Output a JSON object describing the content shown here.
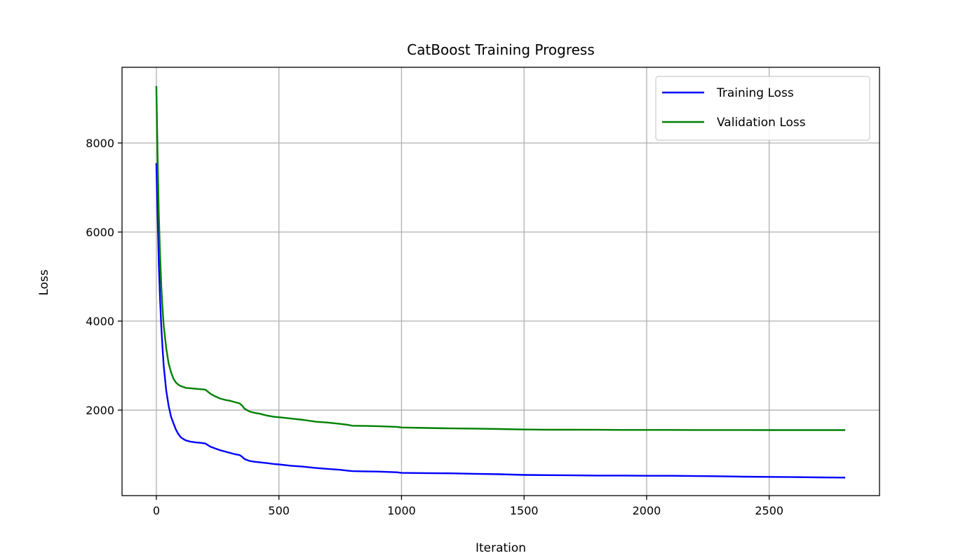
{
  "chart_data": {
    "type": "line",
    "title": "CatBoost Training Progress",
    "xlabel": "Iteration",
    "ylabel": "Loss",
    "xlim": [
      -140,
      2950
    ],
    "ylim": [
      80,
      9700
    ],
    "xticks": [
      0,
      500,
      1000,
      1500,
      2000,
      2500
    ],
    "yticks": [
      2000,
      4000,
      6000,
      8000
    ],
    "grid": true,
    "legend_position": "top-right",
    "series": [
      {
        "name": "Training Loss",
        "color": "#0000ff",
        "x": [
          0,
          5,
          10,
          15,
          20,
          25,
          30,
          40,
          50,
          60,
          70,
          80,
          90,
          100,
          110,
          120,
          140,
          160,
          180,
          200,
          220,
          240,
          260,
          280,
          300,
          320,
          340,
          350,
          360,
          370,
          380,
          400,
          420,
          450,
          480,
          500,
          550,
          600,
          650,
          700,
          750,
          780,
          800,
          850,
          900,
          950,
          980,
          1000,
          1100,
          1200,
          1300,
          1400,
          1500,
          1600,
          1700,
          1800,
          1900,
          2000,
          2100,
          2200,
          2300,
          2400,
          2500,
          2600,
          2700,
          2810
        ],
        "y": [
          7550,
          6400,
          5300,
          4500,
          3900,
          3400,
          3000,
          2450,
          2100,
          1850,
          1700,
          1560,
          1460,
          1390,
          1350,
          1320,
          1290,
          1275,
          1265,
          1250,
          1180,
          1140,
          1100,
          1070,
          1040,
          1010,
          990,
          950,
          900,
          880,
          860,
          840,
          830,
          810,
          790,
          780,
          750,
          730,
          700,
          680,
          660,
          640,
          630,
          625,
          620,
          610,
          605,
          590,
          585,
          580,
          570,
          560,
          545,
          540,
          535,
          530,
          530,
          525,
          525,
          520,
          515,
          505,
          500,
          495,
          490,
          485
        ]
      },
      {
        "name": "Validation Loss",
        "color": "#008000",
        "x": [
          0,
          5,
          10,
          15,
          20,
          25,
          30,
          40,
          50,
          60,
          70,
          80,
          90,
          100,
          110,
          120,
          140,
          160,
          180,
          200,
          220,
          240,
          260,
          280,
          300,
          320,
          340,
          350,
          360,
          370,
          380,
          400,
          420,
          450,
          480,
          500,
          550,
          600,
          650,
          700,
          750,
          780,
          800,
          850,
          900,
          950,
          980,
          1000,
          1100,
          1200,
          1300,
          1400,
          1500,
          1600,
          1700,
          1800,
          1900,
          2000,
          2100,
          2200,
          2300,
          2400,
          2500,
          2600,
          2700,
          2810
        ],
        "y": [
          9280,
          7700,
          6400,
          5500,
          4800,
          4300,
          3900,
          3400,
          3050,
          2850,
          2700,
          2620,
          2570,
          2540,
          2520,
          2500,
          2490,
          2480,
          2470,
          2460,
          2370,
          2310,
          2260,
          2230,
          2210,
          2180,
          2150,
          2100,
          2030,
          2000,
          1970,
          1940,
          1920,
          1880,
          1850,
          1840,
          1810,
          1780,
          1740,
          1720,
          1690,
          1670,
          1650,
          1645,
          1640,
          1630,
          1625,
          1610,
          1600,
          1590,
          1585,
          1575,
          1565,
          1560,
          1560,
          1558,
          1556,
          1555,
          1555,
          1554,
          1554,
          1553,
          1552,
          1552,
          1552,
          1552
        ]
      }
    ]
  }
}
